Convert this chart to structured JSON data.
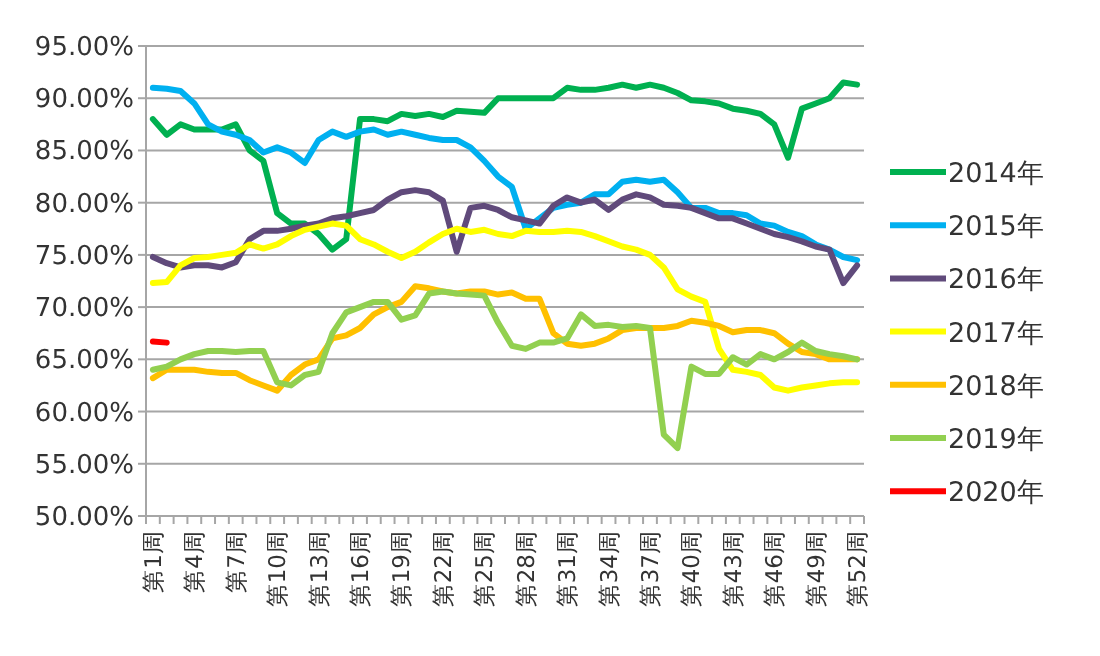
{
  "chart_data": {
    "type": "line",
    "categories": [
      "第1周",
      null,
      null,
      "第4周",
      null,
      null,
      "第7周",
      null,
      null,
      "第10周",
      null,
      null,
      "第13周",
      null,
      null,
      "第16周",
      null,
      null,
      "第19周",
      null,
      null,
      "第22周",
      null,
      null,
      "第25周",
      null,
      null,
      "第28周",
      null,
      null,
      "第31周",
      null,
      null,
      "第34周",
      null,
      null,
      "第37周",
      null,
      null,
      "第40周",
      null,
      null,
      "第43周",
      null,
      null,
      "第46周",
      null,
      null,
      "第49周",
      null,
      null,
      "第52周"
    ],
    "ylim": [
      50,
      95
    ],
    "yticks": [
      {
        "value": 50,
        "label": "50.00%"
      },
      {
        "value": 55,
        "label": "55.00%"
      },
      {
        "value": 60,
        "label": "60.00%"
      },
      {
        "value": 65,
        "label": "65.00%"
      },
      {
        "value": 70,
        "label": "70.00%"
      },
      {
        "value": 75,
        "label": "75.00%"
      },
      {
        "value": 80,
        "label": "80.00%"
      },
      {
        "value": 85,
        "label": "85.00%"
      },
      {
        "value": 90,
        "label": "90.00%"
      },
      {
        "value": 95,
        "label": "95.00%"
      }
    ],
    "grid": "y",
    "legend": "right",
    "marker": "none",
    "line_style": "solid",
    "series": [
      {
        "name": "2014年",
        "color": "#00b050",
        "values": [
          88,
          86.5,
          87.5,
          87,
          87,
          87,
          87.5,
          85,
          84,
          79,
          78,
          78,
          77,
          75.5,
          76.5,
          88,
          88,
          87.8,
          88.5,
          88.3,
          88.5,
          88.2,
          88.8,
          88.7,
          88.6,
          90,
          90,
          90,
          90,
          90,
          91,
          90.8,
          90.8,
          91,
          91.3,
          91,
          91.3,
          91,
          90.5,
          89.8,
          89.7,
          89.5,
          89,
          88.8,
          88.5,
          87.5,
          84.3,
          89,
          89.5,
          90,
          91.5,
          91.3
        ]
      },
      {
        "name": "2015年",
        "color": "#00b0f0",
        "values": [
          91,
          90.9,
          90.7,
          89.5,
          87.5,
          86.8,
          86.5,
          86,
          84.8,
          85.3,
          84.8,
          83.8,
          86,
          86.8,
          86.3,
          86.8,
          87,
          86.5,
          86.8,
          86.5,
          86.2,
          86,
          86,
          85.3,
          84,
          82.5,
          81.5,
          77.5,
          78.5,
          79.5,
          79.8,
          80,
          80.8,
          80.8,
          82,
          82.2,
          82,
          82.2,
          81,
          79.5,
          79.5,
          79,
          79,
          78.8,
          78,
          77.8,
          77.2,
          76.8,
          76,
          75.5,
          74.8,
          74.5
        ]
      },
      {
        "name": "2016年",
        "color": "#604a7b",
        "values": [
          74.8,
          74.2,
          73.8,
          74,
          74,
          73.8,
          74.3,
          76.5,
          77.3,
          77.3,
          77.5,
          77.8,
          78,
          78.5,
          78.7,
          79,
          79.3,
          80.3,
          81,
          81.2,
          81,
          80.2,
          75.3,
          79.5,
          79.7,
          79.3,
          78.6,
          78.3,
          78,
          79.7,
          80.5,
          80,
          80.3,
          79.3,
          80.3,
          80.8,
          80.5,
          79.8,
          79.7,
          79.5,
          79,
          78.5,
          78.5,
          78,
          77.5,
          77,
          76.7,
          76.3,
          75.8,
          75.5,
          72.3,
          74
        ]
      },
      {
        "name": "2017年",
        "color": "#ffff00",
        "values": [
          72.3,
          72.4,
          74,
          74.7,
          74.8,
          75,
          75.2,
          76,
          75.6,
          76,
          76.8,
          77.4,
          77.7,
          78,
          77.8,
          76.5,
          76,
          75.3,
          74.7,
          75.3,
          76.2,
          77,
          77.5,
          77.2,
          77.4,
          77,
          76.8,
          77.3,
          77.2,
          77.2,
          77.3,
          77.2,
          76.8,
          76.3,
          75.8,
          75.5,
          75,
          73.8,
          71.7,
          71,
          70.5,
          66,
          64,
          63.8,
          63.5,
          62.3,
          62,
          62.3,
          62.5,
          62.7,
          62.8,
          62.8
        ]
      },
      {
        "name": "2018年",
        "color": "#ffc000",
        "values": [
          63.2,
          64,
          64,
          64,
          63.8,
          63.7,
          63.7,
          63,
          62.5,
          62,
          63.5,
          64.5,
          65,
          67,
          67.3,
          68,
          69.3,
          70,
          70.5,
          72,
          71.8,
          71.5,
          71.3,
          71.5,
          71.5,
          71.2,
          71.4,
          70.8,
          70.8,
          67.5,
          66.5,
          66.3,
          66.5,
          67,
          67.8,
          68,
          68,
          68,
          68.2,
          68.7,
          68.5,
          68.2,
          67.6,
          67.8,
          67.8,
          67.5,
          66.5,
          65.7,
          65.5,
          65,
          65,
          65
        ]
      },
      {
        "name": "2019年",
        "color": "#92d050",
        "values": [
          64,
          64.3,
          65,
          65.5,
          65.8,
          65.8,
          65.7,
          65.8,
          65.8,
          62.8,
          62.5,
          63.5,
          63.8,
          67.5,
          69.5,
          70,
          70.5,
          70.5,
          68.8,
          69.2,
          71.3,
          71.5,
          71.3,
          71.2,
          71.1,
          68.5,
          66.3,
          66,
          66.6,
          66.6,
          67,
          69.3,
          68.2,
          68.3,
          68.1,
          68.2,
          68,
          57.8,
          56.5,
          64.3,
          63.6,
          63.6,
          65.2,
          64.5,
          65.5,
          65,
          65.7,
          66.6,
          65.8,
          65.5,
          65.3,
          65
        ]
      },
      {
        "name": "2020年",
        "color": "#ff0000",
        "values": [
          66.7,
          66.6,
          null,
          null,
          null,
          null,
          null,
          null,
          null,
          null,
          null,
          null,
          null,
          null,
          null,
          null,
          null,
          null,
          null,
          null,
          null,
          null,
          null,
          null,
          null,
          null,
          null,
          null,
          null,
          null,
          null,
          null,
          null,
          null,
          null,
          null,
          null,
          null,
          null,
          null,
          null,
          null,
          null,
          null,
          null,
          null,
          null,
          null,
          null,
          null,
          null,
          null
        ]
      }
    ]
  }
}
